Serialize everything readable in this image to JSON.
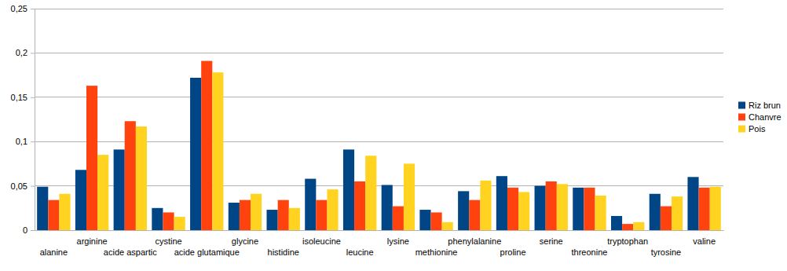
{
  "chart_data": {
    "type": "bar",
    "categories": [
      "alanine",
      "arginine",
      "acide aspartic",
      "cystine",
      "acide glutamique",
      "glycine",
      "histidine",
      "isoleucine",
      "leucine",
      "lysine",
      "methionine",
      "phenylalanine",
      "proline",
      "serine",
      "threonine",
      "tryptophan",
      "tyrosine",
      "valine"
    ],
    "series": [
      {
        "name": "Riz brun",
        "color": "#004586",
        "values": [
          0.049,
          0.068,
          0.091,
          0.025,
          0.172,
          0.031,
          0.023,
          0.058,
          0.091,
          0.051,
          0.023,
          0.044,
          0.061,
          0.05,
          0.048,
          0.016,
          0.041,
          0.06
        ]
      },
      {
        "name": "Chanvre",
        "color": "#ff420e",
        "values": [
          0.034,
          0.163,
          0.123,
          0.02,
          0.191,
          0.034,
          0.034,
          0.034,
          0.055,
          0.027,
          0.02,
          0.034,
          0.048,
          0.055,
          0.048,
          0.007,
          0.027,
          0.048
        ]
      },
      {
        "name": "Pois",
        "color": "#ffd320",
        "values": [
          0.041,
          0.085,
          0.117,
          0.015,
          0.178,
          0.041,
          0.025,
          0.046,
          0.084,
          0.075,
          0.009,
          0.056,
          0.043,
          0.052,
          0.039,
          0.009,
          0.038,
          0.049
        ]
      }
    ],
    "ylim": [
      0,
      0.25
    ],
    "yticks": [
      0,
      {
        "value": 0.05,
        "label": "0,05"
      },
      {
        "value": 0.1,
        "label": "0,1"
      },
      {
        "value": 0.15,
        "label": "0,15"
      },
      {
        "value": 0.2,
        "label": "0,2"
      },
      {
        "value": 0.25,
        "label": "0,25"
      }
    ],
    "grid": true,
    "legend": "right"
  }
}
